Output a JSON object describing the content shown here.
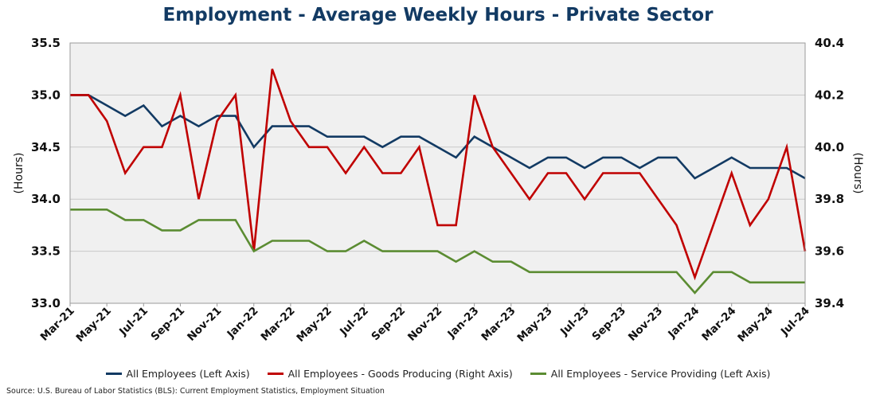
{
  "chart_data": {
    "type": "line",
    "title": "Employment - Average Weekly Hours - Private Sector",
    "ylabel_left": "(Hours)",
    "ylabel_right": "(Hours)",
    "ylim_left": [
      33.0,
      35.5
    ],
    "ylim_right": [
      39.4,
      40.4
    ],
    "yticks_left": [
      "33.0",
      "33.5",
      "34.0",
      "34.5",
      "35.0",
      "35.5"
    ],
    "yticks_right": [
      "39.4",
      "39.6",
      "39.8",
      "40.0",
      "40.2",
      "40.4"
    ],
    "xtick_labels": [
      "Mar-21",
      "May-21",
      "Jul-21",
      "Sep-21",
      "Nov-21",
      "Jan-22",
      "Mar-22",
      "May-22",
      "Jul-22",
      "Sep-22",
      "Nov-22",
      "Jan-23",
      "Mar-23",
      "May-23",
      "Jul-23",
      "Sep-23",
      "Nov-23",
      "Jan-24",
      "Mar-24",
      "May-24",
      "Jul-24"
    ],
    "x_start": "Mar-21",
    "n_points": 41,
    "grid": true,
    "legend_position": "bottom",
    "series": [
      {
        "name": "All Employees (Left Axis)",
        "axis": "left",
        "color": "#123a63",
        "values": [
          35.0,
          35.0,
          34.9,
          34.8,
          34.9,
          34.7,
          34.8,
          34.7,
          34.8,
          34.8,
          34.5,
          34.7,
          34.7,
          34.7,
          34.6,
          34.6,
          34.6,
          34.5,
          34.6,
          34.6,
          34.5,
          34.4,
          34.6,
          34.5,
          34.4,
          34.3,
          34.4,
          34.4,
          34.3,
          34.4,
          34.4,
          34.3,
          34.4,
          34.4,
          34.2,
          34.3,
          34.4,
          34.3,
          34.3,
          34.3,
          34.2
        ]
      },
      {
        "name": "All Employees - Goods Producing (Right Axis)",
        "axis": "right",
        "color": "#c00000",
        "values": [
          40.2,
          40.2,
          40.1,
          39.9,
          40.0,
          40.0,
          40.2,
          39.8,
          40.1,
          40.2,
          39.6,
          40.3,
          40.1,
          40.0,
          40.0,
          39.9,
          40.0,
          39.9,
          39.9,
          40.0,
          39.7,
          39.7,
          40.2,
          40.0,
          39.9,
          39.8,
          39.9,
          39.9,
          39.8,
          39.9,
          39.9,
          39.9,
          39.8,
          39.7,
          39.5,
          39.7,
          39.9,
          39.7,
          39.8,
          40.0,
          39.6
        ]
      },
      {
        "name": "All Employees - Service Providing (Left Axis)",
        "axis": "left",
        "color": "#5b8c32",
        "values": [
          33.9,
          33.9,
          33.9,
          33.8,
          33.8,
          33.7,
          33.7,
          33.8,
          33.8,
          33.8,
          33.5,
          33.6,
          33.6,
          33.6,
          33.5,
          33.5,
          33.6,
          33.5,
          33.5,
          33.5,
          33.5,
          33.4,
          33.5,
          33.4,
          33.4,
          33.3,
          33.3,
          33.3,
          33.3,
          33.3,
          33.3,
          33.3,
          33.3,
          33.3,
          33.1,
          33.3,
          33.3,
          33.2,
          33.2,
          33.2,
          33.2
        ]
      }
    ]
  },
  "source": "Source: U.S. Bureau of Labor Statistics (BLS): Current Employment Statistics, Employment Situation"
}
